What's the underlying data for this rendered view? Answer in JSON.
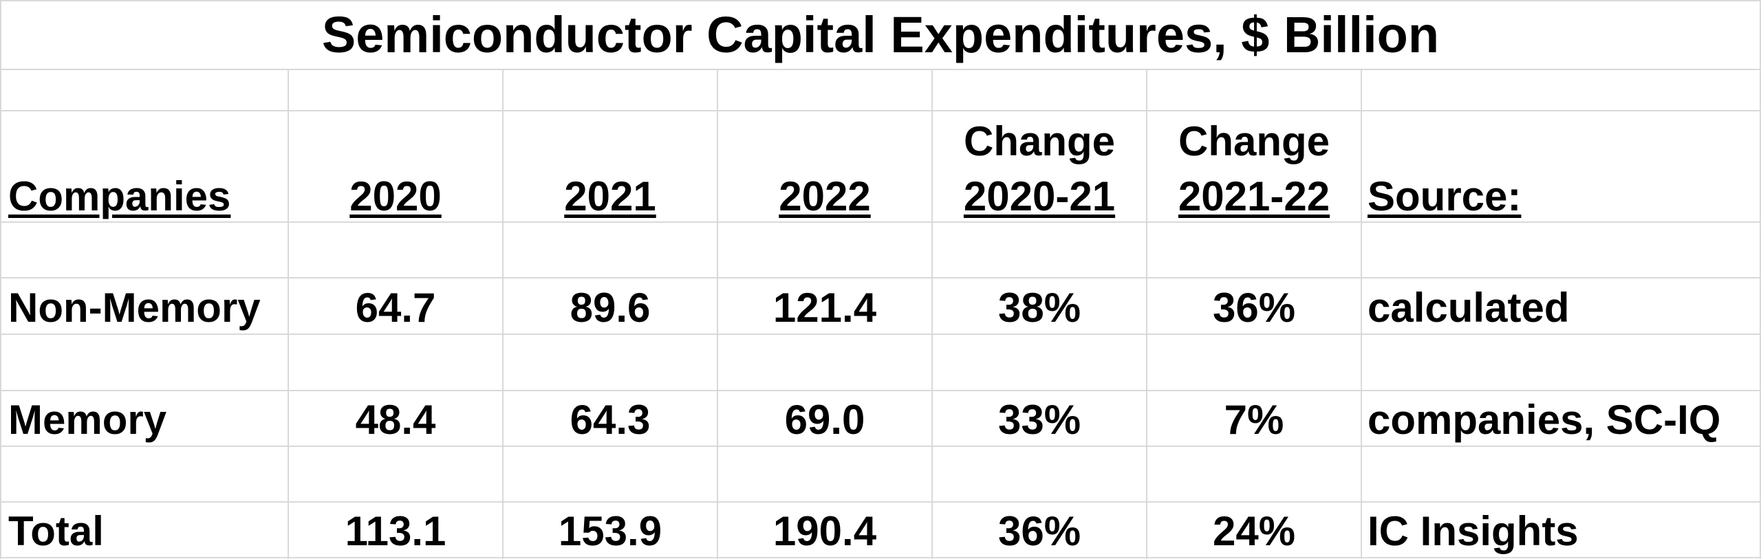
{
  "title": "Semiconductor Capital Expenditures, $ Billion",
  "headers": {
    "companies": "Companies",
    "y2020": "2020",
    "y2021": "2021",
    "y2022": "2022",
    "change1_top": "Change",
    "change1_bottom": "2020-21",
    "change2_top": "Change",
    "change2_bottom": "2021-22",
    "source": "Source:"
  },
  "rows": [
    {
      "label": "Non-Memory",
      "v2020": "64.7",
      "v2021": "89.6",
      "v2022": "121.4",
      "c1": "38%",
      "c2": "36%",
      "source": "calculated"
    },
    {
      "label": "Memory",
      "v2020": "48.4",
      "v2021": "64.3",
      "v2022": "69.0",
      "c1": "33%",
      "c2": "7%",
      "source": "companies, SC-IQ"
    },
    {
      "label": "Total",
      "v2020": "113.1",
      "v2021": "153.9",
      "v2022": "190.4",
      "c1": "36%",
      "c2": "24%",
      "source": "IC Insights"
    }
  ]
}
